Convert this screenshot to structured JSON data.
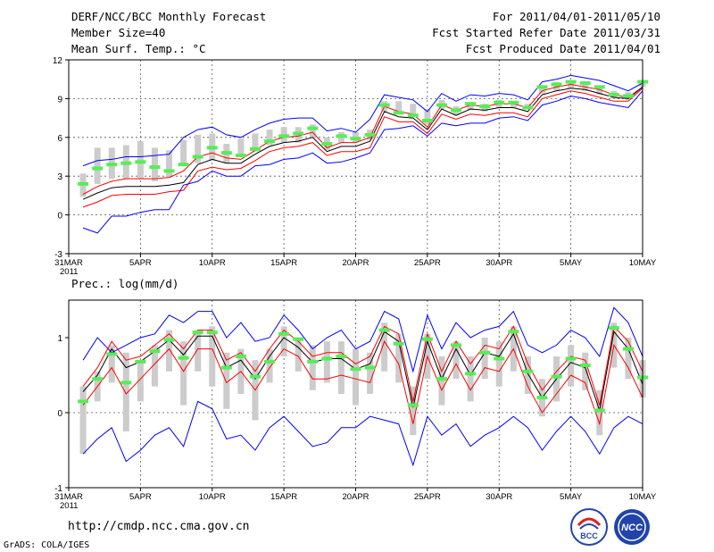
{
  "header": {
    "title": "DERF/NCC/BCC Monthly Forecast",
    "member_size": "Member Size=40",
    "variable": "Mean Surf. Temp.: °C",
    "forecast_range": "For 2011/04/01-2011/05/10",
    "started_date": "Fcst Started Refer Date 2011/03/31",
    "produced_date": "Fcst Produced Date 2011/04/01"
  },
  "footer": {
    "url": "http://cmdp.ncc.cma.gov.cn",
    "grads": "GrADS: COLA/IGES",
    "logo_bcc": "BCC",
    "logo_ncc": "NCC"
  },
  "colors": {
    "ensemble_bounds": "#0000ff",
    "spread_band": "#ff0000",
    "ensemble_mean": "#000000",
    "observed_bar": "#cccccc",
    "climatology_dash": "#55ee55"
  },
  "chart_data": [
    {
      "type": "line",
      "title": "Mean Surf. Temp.: °C",
      "xlabel": "",
      "ylabel": "",
      "x_ticks": [
        "31MAR\n2011",
        "5APR",
        "10APR",
        "15APR",
        "20APR",
        "25APR",
        "30APR",
        "5MAY",
        "10MAY"
      ],
      "x_tick_days": [
        0,
        5,
        10,
        15,
        20,
        25,
        30,
        35,
        40
      ],
      "y_ticks": [
        -3,
        0,
        3,
        6,
        9,
        12
      ],
      "ylim": [
        -3,
        12
      ],
      "xlim": [
        0,
        40
      ],
      "days": [
        1,
        2,
        3,
        4,
        5,
        6,
        7,
        8,
        9,
        10,
        11,
        12,
        13,
        14,
        15,
        16,
        17,
        18,
        19,
        20,
        21,
        22,
        23,
        24,
        25,
        26,
        27,
        28,
        29,
        30,
        31,
        32,
        33,
        34,
        35,
        36,
        37,
        38,
        39,
        40
      ],
      "series": [
        {
          "name": "ensemble max",
          "values": [
            3.8,
            4.2,
            4.3,
            4.5,
            4.5,
            4.6,
            4.7,
            6.0,
            6.6,
            6.8,
            6.2,
            6.0,
            6.6,
            7.1,
            7.4,
            7.5,
            7.5,
            6.5,
            6.7,
            6.4,
            7.4,
            9.3,
            9.1,
            8.9,
            8.0,
            9.4,
            8.8,
            9.3,
            9.2,
            9.4,
            9.3,
            8.9,
            10.3,
            10.5,
            10.8,
            10.6,
            10.4,
            10.0,
            9.6,
            10.2
          ]
        },
        {
          "name": "spread upper",
          "values": [
            1.6,
            2.2,
            2.6,
            2.8,
            2.8,
            2.8,
            2.9,
            3.4,
            4.5,
            4.8,
            4.4,
            4.3,
            5.0,
            5.7,
            6.0,
            6.1,
            6.4,
            5.2,
            5.6,
            5.6,
            6.0,
            8.4,
            8.0,
            7.8,
            6.8,
            8.5,
            8.1,
            8.5,
            8.4,
            8.6,
            8.6,
            8.3,
            9.6,
            9.9,
            10.1,
            9.9,
            9.7,
            9.3,
            9.1,
            9.9
          ]
        },
        {
          "name": "ensemble mean",
          "values": [
            1.2,
            1.7,
            2.1,
            2.2,
            2.2,
            2.2,
            2.3,
            2.5,
            3.9,
            4.3,
            4.0,
            4.0,
            4.7,
            5.3,
            5.6,
            5.7,
            6.0,
            4.9,
            5.3,
            5.3,
            5.7,
            8.0,
            7.6,
            7.5,
            6.6,
            8.2,
            7.7,
            8.2,
            8.1,
            8.3,
            8.3,
            8.0,
            9.3,
            9.6,
            9.8,
            9.7,
            9.4,
            9.1,
            9.0,
            9.9
          ]
        },
        {
          "name": "spread lower",
          "values": [
            0.6,
            1.0,
            1.5,
            1.6,
            1.6,
            1.6,
            1.8,
            1.9,
            3.4,
            3.7,
            3.5,
            3.6,
            4.2,
            4.9,
            5.2,
            5.3,
            5.6,
            4.6,
            4.9,
            4.9,
            5.2,
            7.6,
            7.2,
            7.2,
            6.3,
            7.8,
            7.4,
            7.8,
            7.7,
            7.9,
            7.9,
            7.6,
            9.0,
            9.3,
            9.6,
            9.4,
            9.1,
            8.8,
            8.8,
            9.8
          ]
        },
        {
          "name": "ensemble min",
          "values": [
            -1.0,
            -1.4,
            -0.1,
            -0.1,
            0.2,
            0.4,
            0.4,
            2.3,
            2.6,
            3.4,
            3.0,
            3.0,
            3.8,
            3.9,
            4.3,
            4.4,
            4.8,
            4.0,
            4.1,
            4.4,
            4.8,
            6.6,
            6.7,
            6.9,
            6.1,
            7.1,
            6.9,
            7.1,
            7.1,
            7.5,
            7.6,
            7.3,
            8.5,
            8.8,
            9.2,
            9.0,
            8.7,
            8.5,
            8.3,
            9.6
          ]
        }
      ],
      "observed_bars": [
        [
          1.4,
          3.2
        ],
        [
          2.4,
          5.2
        ],
        [
          2.8,
          5.2
        ],
        [
          2.8,
          5.4
        ],
        [
          2.8,
          5.7
        ],
        [
          2.6,
          5.2
        ],
        [
          2.9,
          5.0
        ],
        [
          4.0,
          5.8
        ],
        [
          4.0,
          6.2
        ],
        [
          4.2,
          6.3
        ],
        [
          4.0,
          5.5
        ],
        [
          4.6,
          5.9
        ],
        [
          4.9,
          6.3
        ],
        [
          5.4,
          6.6
        ],
        [
          5.6,
          6.8
        ],
        [
          5.6,
          6.8
        ],
        [
          6.0,
          7.0
        ],
        [
          5.0,
          6.0
        ],
        [
          5.6,
          6.4
        ],
        [
          5.6,
          6.4
        ],
        [
          5.8,
          6.6
        ],
        [
          8.0,
          8.8
        ],
        [
          7.9,
          8.8
        ],
        [
          7.8,
          8.6
        ],
        [
          7.0,
          8.2
        ],
        [
          8.2,
          8.9
        ],
        [
          7.7,
          8.4
        ],
        [
          8.1,
          8.7
        ],
        [
          8.0,
          8.6
        ],
        [
          8.3,
          8.9
        ],
        [
          8.3,
          8.8
        ],
        [
          8.2,
          8.6
        ],
        [
          9.4,
          10.0
        ],
        [
          9.6,
          10.3
        ],
        [
          9.8,
          10.4
        ],
        [
          9.6,
          10.2
        ],
        [
          9.3,
          9.9
        ],
        [
          9.0,
          9.6
        ],
        [
          8.9,
          9.5
        ],
        [
          9.9,
          10.4
        ]
      ],
      "climatology": [
        2.4,
        3.6,
        3.9,
        4.0,
        4.1,
        3.7,
        3.4,
        3.9,
        4.5,
        5.2,
        4.8,
        4.6,
        5.1,
        5.7,
        6.1,
        6.3,
        6.7,
        5.5,
        6.1,
        5.9,
        6.2,
        8.5,
        7.9,
        7.7,
        7.3,
        8.5,
        8.1,
        8.6,
        8.4,
        8.7,
        8.7,
        8.3,
        9.9,
        10.1,
        10.3,
        10.2,
        9.9,
        9.3,
        9.2,
        10.3
      ]
    },
    {
      "type": "line",
      "title": "Prec.: log(mm/d)",
      "xlabel": "",
      "ylabel": "",
      "x_ticks": [
        "31MAR\n2011",
        "5APR",
        "10APR",
        "15APR",
        "20APR",
        "25APR",
        "30APR",
        "5MAY",
        "10MAY"
      ],
      "x_tick_days": [
        0,
        5,
        10,
        15,
        20,
        25,
        30,
        35,
        40
      ],
      "y_ticks": [
        -1,
        0,
        1
      ],
      "ylim": [
        -1,
        1.5
      ],
      "xlim": [
        0,
        40
      ],
      "days": [
        1,
        2,
        3,
        4,
        5,
        6,
        7,
        8,
        9,
        10,
        11,
        12,
        13,
        14,
        15,
        16,
        17,
        18,
        19,
        20,
        21,
        22,
        23,
        24,
        25,
        26,
        27,
        28,
        29,
        30,
        31,
        32,
        33,
        34,
        35,
        36,
        37,
        38,
        39,
        40
      ],
      "series": [
        {
          "name": "ensemble max",
          "values": [
            0.7,
            1.0,
            0.8,
            0.9,
            1.0,
            1.05,
            1.3,
            1.2,
            1.35,
            1.35,
            1.0,
            1.2,
            0.95,
            1.0,
            1.3,
            1.1,
            0.85,
            1.0,
            1.1,
            0.85,
            0.95,
            1.35,
            1.25,
            0.55,
            1.3,
            0.85,
            1.2,
            1.0,
            1.1,
            1.15,
            1.35,
            0.9,
            0.8,
            0.9,
            1.1,
            1.0,
            0.75,
            1.4,
            1.2,
            0.75
          ]
        },
        {
          "name": "spread upper",
          "values": [
            0.35,
            0.6,
            0.95,
            0.7,
            0.75,
            0.9,
            1.05,
            0.85,
            1.1,
            1.1,
            0.7,
            0.8,
            0.55,
            0.85,
            1.1,
            0.95,
            0.75,
            0.8,
            0.8,
            0.65,
            0.75,
            1.15,
            1.05,
            0.15,
            1.05,
            0.55,
            0.95,
            0.65,
            0.9,
            0.85,
            1.15,
            0.65,
            0.3,
            0.55,
            0.75,
            0.7,
            0.1,
            1.15,
            0.95,
            0.55
          ]
        },
        {
          "name": "ensemble mean",
          "values": [
            0.28,
            0.5,
            0.85,
            0.6,
            0.68,
            0.82,
            0.97,
            0.77,
            1.02,
            1.02,
            0.6,
            0.7,
            0.45,
            0.75,
            1.0,
            0.87,
            0.67,
            0.72,
            0.72,
            0.58,
            0.65,
            1.08,
            0.95,
            0.07,
            0.95,
            0.45,
            0.85,
            0.5,
            0.8,
            0.75,
            1.05,
            0.52,
            0.2,
            0.45,
            0.67,
            0.6,
            0.03,
            1.08,
            0.85,
            0.38
          ]
        },
        {
          "name": "spread lower",
          "values": [
            0.1,
            0.35,
            0.6,
            0.25,
            0.45,
            0.65,
            0.85,
            0.55,
            0.85,
            0.85,
            0.4,
            0.55,
            0.3,
            0.6,
            0.85,
            0.75,
            0.45,
            0.45,
            0.5,
            0.45,
            0.4,
            0.95,
            0.65,
            -0.15,
            0.75,
            0.3,
            0.65,
            0.3,
            0.6,
            0.55,
            0.85,
            0.35,
            0.0,
            0.25,
            0.5,
            0.4,
            -0.15,
            0.9,
            0.6,
            0.2
          ]
        },
        {
          "name": "ensemble min",
          "values": [
            -0.55,
            -0.35,
            -0.2,
            -0.65,
            -0.5,
            -0.3,
            -0.2,
            -0.45,
            0.15,
            0.05,
            -0.35,
            -0.3,
            -0.5,
            -0.2,
            -0.05,
            -0.25,
            -0.45,
            -0.4,
            -0.2,
            -0.2,
            -0.05,
            -0.1,
            -0.15,
            -0.7,
            -0.05,
            -0.3,
            -0.15,
            -0.45,
            -0.3,
            -0.2,
            -0.05,
            -0.2,
            -0.5,
            -0.25,
            -0.05,
            -0.25,
            -0.55,
            -0.2,
            -0.05,
            -0.15
          ]
        }
      ],
      "observed_bars": [
        [
          -0.55,
          0.35
        ],
        [
          0.15,
          0.55
        ],
        [
          0.4,
          0.9
        ],
        [
          -0.25,
          0.8
        ],
        [
          0.15,
          0.7
        ],
        [
          0.35,
          0.9
        ],
        [
          0.55,
          1.1
        ],
        [
          0.1,
          0.95
        ],
        [
          0.55,
          1.1
        ],
        [
          0.35,
          1.15
        ],
        [
          0.05,
          0.8
        ],
        [
          0.25,
          0.85
        ],
        [
          -0.1,
          0.7
        ],
        [
          0.4,
          0.85
        ],
        [
          0.75,
          1.15
        ],
        [
          0.55,
          1.0
        ],
        [
          0.3,
          0.9
        ],
        [
          0.4,
          0.95
        ],
        [
          0.25,
          0.95
        ],
        [
          0.1,
          0.85
        ],
        [
          0.25,
          0.8
        ],
        [
          0.55,
          1.2
        ],
        [
          0.4,
          1.05
        ],
        [
          -0.3,
          0.35
        ],
        [
          0.45,
          1.05
        ],
        [
          0.1,
          0.75
        ],
        [
          0.45,
          0.95
        ],
        [
          0.15,
          0.75
        ],
        [
          0.45,
          1.0
        ],
        [
          0.35,
          0.95
        ],
        [
          0.55,
          1.15
        ],
        [
          0.25,
          0.75
        ],
        [
          -0.05,
          0.45
        ],
        [
          0.15,
          0.75
        ],
        [
          0.35,
          0.9
        ],
        [
          0.3,
          0.8
        ],
        [
          -0.3,
          0.3
        ],
        [
          0.6,
          1.2
        ],
        [
          0.45,
          1.0
        ],
        [
          0.2,
          0.7
        ]
      ],
      "climatology": [
        0.15,
        0.45,
        0.78,
        0.4,
        0.68,
        0.82,
        0.97,
        0.73,
        1.07,
        1.07,
        0.6,
        0.75,
        0.48,
        0.68,
        1.05,
        0.98,
        0.68,
        0.72,
        0.75,
        0.58,
        0.6,
        1.1,
        0.92,
        0.1,
        0.98,
        0.45,
        0.9,
        0.52,
        0.8,
        0.72,
        1.08,
        0.55,
        0.2,
        0.48,
        0.72,
        0.63,
        0.03,
        1.13,
        0.85,
        0.47
      ]
    }
  ]
}
